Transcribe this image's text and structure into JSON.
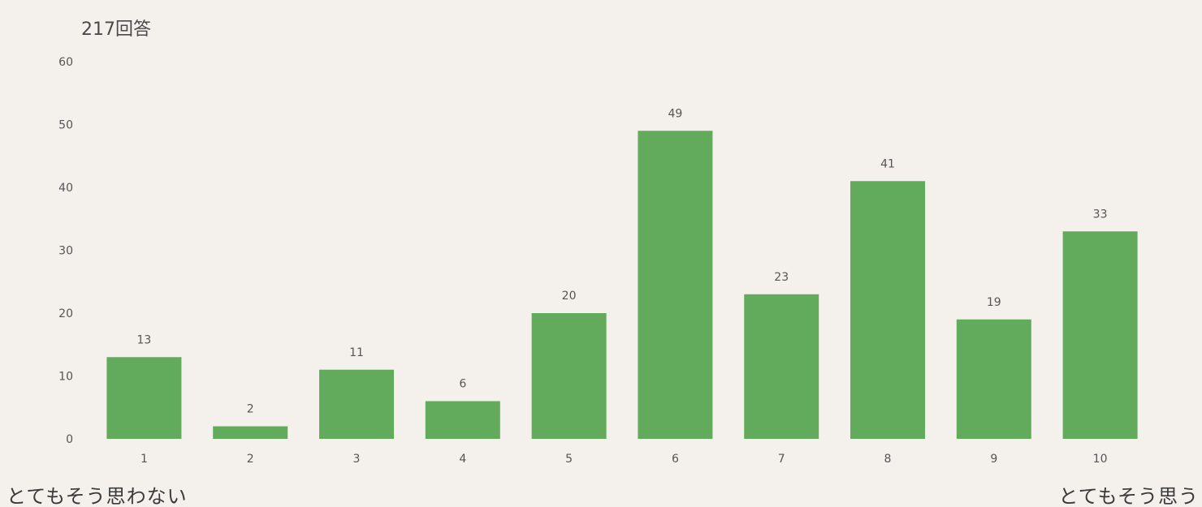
{
  "response_count": "217回答",
  "scale": {
    "low_label": "とてもそう思わない",
    "high_label": "とてもそう思う"
  },
  "colors": {
    "bar": "#63ab5c",
    "background": "#f4f1ec"
  },
  "chart_data": {
    "type": "bar",
    "title": "217回答",
    "categories": [
      "1",
      "2",
      "3",
      "4",
      "5",
      "6",
      "7",
      "8",
      "9",
      "10"
    ],
    "values": [
      13,
      2,
      11,
      6,
      20,
      49,
      23,
      41,
      19,
      33
    ],
    "ylim": [
      0,
      60
    ],
    "yticks": [
      0,
      10,
      20,
      30,
      40,
      50,
      60
    ],
    "xlabel": "",
    "ylabel": "",
    "data_labels": true,
    "grid": false,
    "legend": "none"
  }
}
